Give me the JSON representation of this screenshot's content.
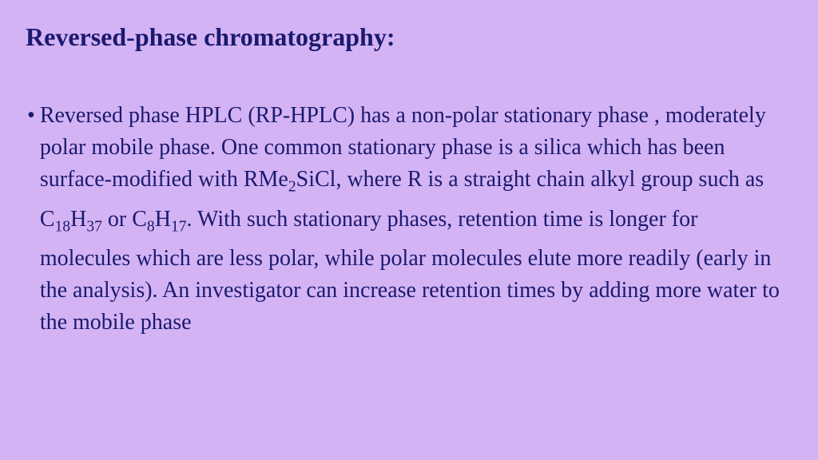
{
  "slide": {
    "background_color": "#d4b3f5",
    "text_color": "#1a1a6e",
    "title_fontsize": 32,
    "body_fontsize": 28,
    "line_height": 40,
    "font_family": "Times New Roman",
    "title": "Reversed-phase chromatography:",
    "bullet_char": "•",
    "body_segments": [
      {
        "text": "Reversed phase HPLC (RP-HPLC) has a non-polar stationary phase , moderately polar mobile phase. One common stationary phase is a silica which has been surface-modified with RMe",
        "sub": false
      },
      {
        "text": "2",
        "sub": true
      },
      {
        "text": "SiCl, where R is a straight chain alkyl group such as C",
        "sub": false
      },
      {
        "text": "18",
        "sub": true
      },
      {
        "text": "H",
        "sub": false
      },
      {
        "text": "37",
        "sub": true
      },
      {
        "text": " or C",
        "sub": false
      },
      {
        "text": "8",
        "sub": true
      },
      {
        "text": "H",
        "sub": false
      },
      {
        "text": "17",
        "sub": true
      },
      {
        "text": ". With such stationary phases, retention time is longer for molecules which are less polar, while polar molecules elute more readily (early in the analysis). An investigator can increase retention times by adding more water to the mobile phase",
        "sub": false
      }
    ]
  }
}
